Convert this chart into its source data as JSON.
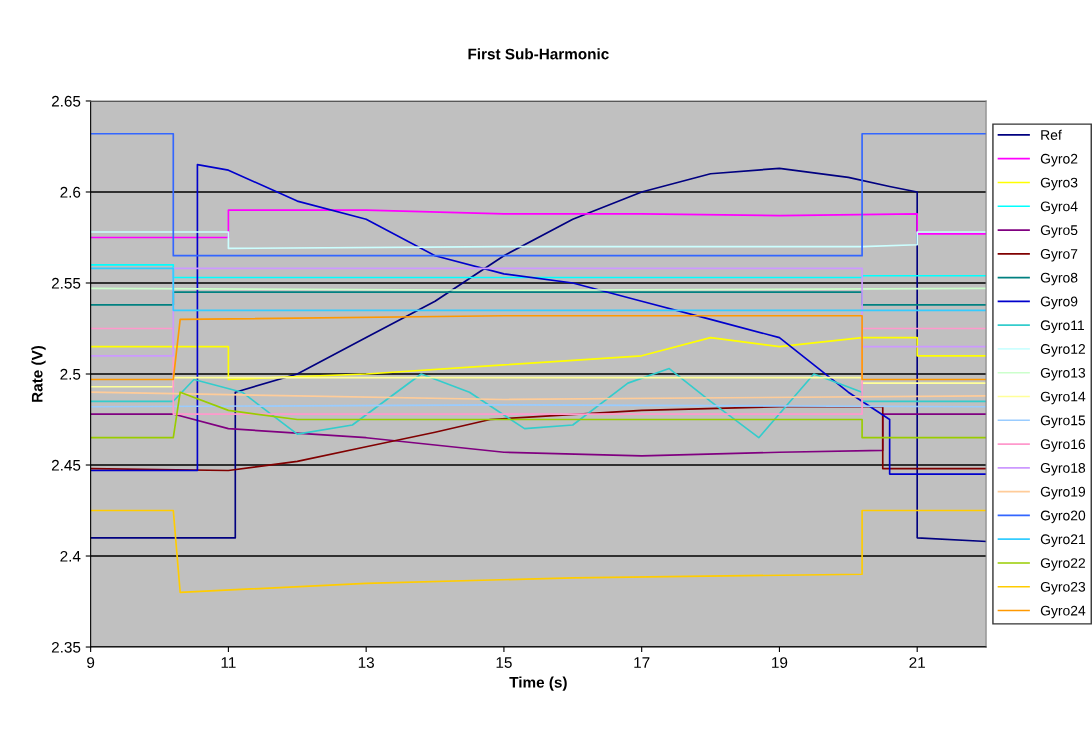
{
  "chart_data": {
    "type": "line",
    "title": "First Sub-Harmonic",
    "xlabel": "Time (s)",
    "ylabel": "Rate (V)",
    "xlim": [
      9,
      22
    ],
    "xticks": [
      9,
      11,
      13,
      15,
      17,
      19,
      21
    ],
    "ylim": [
      2.35,
      2.65
    ],
    "yticks": [
      2.35,
      {
        "value": 2.4,
        "label": "2.4"
      },
      2.45,
      {
        "value": 2.5,
        "label": "2.5"
      },
      2.55,
      {
        "value": 2.6,
        "label": "2.6"
      },
      2.65
    ],
    "grid": "y",
    "legend": "right",
    "marker": "none",
    "line_style": "solid",
    "series": [
      {
        "name": "Ref",
        "color": "#000080",
        "x": [
          9,
          11.1,
          11.1,
          12,
          13,
          14,
          15,
          16,
          17,
          18,
          19,
          20,
          20.6,
          21,
          21,
          22
        ],
        "values": [
          2.41,
          2.41,
          2.49,
          2.5,
          2.52,
          2.54,
          2.565,
          2.585,
          2.6,
          2.61,
          2.613,
          2.608,
          2.603,
          2.6,
          2.41,
          2.408
        ]
      },
      {
        "name": "Gyro2",
        "color": "#ff00ff",
        "x": [
          9,
          11,
          11,
          13,
          15,
          17,
          19,
          21,
          21,
          22
        ],
        "values": [
          2.575,
          2.575,
          2.59,
          2.59,
          2.588,
          2.588,
          2.587,
          2.588,
          2.577,
          2.577
        ]
      },
      {
        "name": "Gyro3",
        "color": "#ffff00",
        "x": [
          9,
          11,
          11,
          13,
          15,
          17,
          18,
          19,
          20.2,
          21,
          21,
          22
        ],
        "values": [
          2.515,
          2.515,
          2.497,
          2.5,
          2.505,
          2.51,
          2.52,
          2.515,
          2.52,
          2.52,
          2.51,
          2.51
        ]
      },
      {
        "name": "Gyro4",
        "color": "#00ffff",
        "x": [
          9,
          10.2,
          10.2,
          15,
          20.2,
          20.2,
          22
        ],
        "values": [
          2.56,
          2.56,
          2.553,
          2.553,
          2.553,
          2.554,
          2.554
        ]
      },
      {
        "name": "Gyro5",
        "color": "#800080",
        "x": [
          9,
          10.2,
          11,
          13,
          15,
          17,
          19,
          20.5,
          20.5,
          22
        ],
        "values": [
          2.478,
          2.478,
          2.47,
          2.465,
          2.457,
          2.455,
          2.457,
          2.458,
          2.478,
          2.478
        ]
      },
      {
        "name": "Gyro7",
        "color": "#800000",
        "x": [
          9,
          11,
          12,
          13,
          14,
          14.8,
          17,
          19,
          20.5,
          20.5,
          22
        ],
        "values": [
          2.448,
          2.447,
          2.452,
          2.46,
          2.468,
          2.475,
          2.48,
          2.482,
          2.482,
          2.448,
          2.448
        ]
      },
      {
        "name": "Gyro8",
        "color": "#008080",
        "x": [
          9,
          10.2,
          10.2,
          15,
          20.2,
          20.2,
          22
        ],
        "values": [
          2.538,
          2.538,
          2.545,
          2.545,
          2.545,
          2.538,
          2.538
        ]
      },
      {
        "name": "Gyro9",
        "color": "#0000cc",
        "x": [
          9,
          10.55,
          10.55,
          11,
          12,
          13,
          14,
          15,
          16,
          17,
          18,
          19,
          19.5,
          20,
          20.6,
          20.6,
          22
        ],
        "values": [
          2.447,
          2.447,
          2.615,
          2.612,
          2.595,
          2.585,
          2.565,
          2.555,
          2.55,
          2.54,
          2.53,
          2.52,
          2.505,
          2.49,
          2.475,
          2.445,
          2.445
        ]
      },
      {
        "name": "Gyro11",
        "color": "#33cccc",
        "x": [
          9,
          10.2,
          10.5,
          11.2,
          12,
          12.8,
          13.8,
          14.5,
          15.3,
          16,
          16.8,
          17.4,
          18,
          18.7,
          19.5,
          20.2,
          20.2,
          22
        ],
        "values": [
          2.485,
          2.485,
          2.497,
          2.49,
          2.467,
          2.472,
          2.5,
          2.49,
          2.47,
          2.472,
          2.495,
          2.503,
          2.485,
          2.465,
          2.5,
          2.49,
          2.485,
          2.485
        ]
      },
      {
        "name": "Gyro12",
        "color": "#ccffff",
        "x": [
          9,
          11,
          11,
          15,
          20.2,
          21,
          21,
          22
        ],
        "values": [
          2.578,
          2.578,
          2.569,
          2.57,
          2.57,
          2.571,
          2.578,
          2.578
        ]
      },
      {
        "name": "Gyro13",
        "color": "#ccffcc",
        "x": [
          9,
          15,
          22
        ],
        "values": [
          2.547,
          2.546,
          2.547
        ]
      },
      {
        "name": "Gyro14",
        "color": "#ffff99",
        "x": [
          9,
          10.2,
          10.2,
          15,
          20.2,
          20.2,
          22
        ],
        "values": [
          2.493,
          2.493,
          2.498,
          2.498,
          2.498,
          2.495,
          2.495
        ]
      },
      {
        "name": "Gyro15",
        "color": "#99ccff",
        "x": [
          9,
          15,
          22
        ],
        "values": [
          2.482,
          2.483,
          2.482
        ]
      },
      {
        "name": "Gyro16",
        "color": "#ff99cc",
        "x": [
          9,
          10.2,
          10.2,
          15,
          20.2,
          20.2,
          22
        ],
        "values": [
          2.525,
          2.525,
          2.478,
          2.478,
          2.478,
          2.525,
          2.525
        ]
      },
      {
        "name": "Gyro18",
        "color": "#cc99ff",
        "x": [
          9,
          10.2,
          10.2,
          15,
          20.2,
          20.2,
          22
        ],
        "values": [
          2.51,
          2.51,
          2.558,
          2.558,
          2.558,
          2.515,
          2.515
        ]
      },
      {
        "name": "Gyro19",
        "color": "#ffcc99",
        "x": [
          9,
          15,
          22
        ],
        "values": [
          2.49,
          2.486,
          2.488
        ]
      },
      {
        "name": "Gyro20",
        "color": "#3366ff",
        "x": [
          9,
          10.2,
          10.2,
          15,
          20.2,
          20.2,
          22
        ],
        "values": [
          2.632,
          2.632,
          2.565,
          2.565,
          2.565,
          2.632,
          2.632
        ]
      },
      {
        "name": "Gyro21",
        "color": "#33ccff",
        "x": [
          9,
          10.2,
          10.2,
          15,
          20.2,
          20.2,
          22
        ],
        "values": [
          2.558,
          2.558,
          2.535,
          2.535,
          2.535,
          2.535,
          2.535
        ]
      },
      {
        "name": "Gyro22",
        "color": "#99cc00",
        "x": [
          9,
          10.2,
          10.3,
          11,
          12,
          15,
          20.2,
          20.2,
          22
        ],
        "values": [
          2.465,
          2.465,
          2.49,
          2.48,
          2.475,
          2.475,
          2.475,
          2.465,
          2.465
        ]
      },
      {
        "name": "Gyro23",
        "color": "#ffcc00",
        "x": [
          9,
          10.2,
          10.3,
          13,
          16,
          20.2,
          20.2,
          22
        ],
        "values": [
          2.425,
          2.425,
          2.38,
          2.385,
          2.388,
          2.39,
          2.425,
          2.425
        ]
      },
      {
        "name": "Gyro24",
        "color": "#ff9900",
        "x": [
          9,
          10.2,
          10.3,
          15,
          20.2,
          20.2,
          22
        ],
        "values": [
          2.497,
          2.497,
          2.53,
          2.532,
          2.532,
          2.497,
          2.497
        ]
      }
    ]
  }
}
